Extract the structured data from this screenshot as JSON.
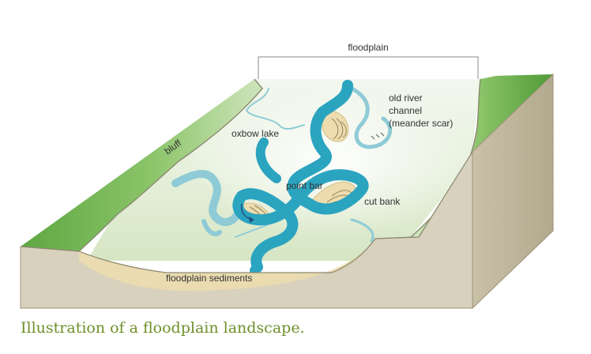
{
  "labels": {
    "floodplain": "floodplain",
    "old_river_line1": "old river",
    "old_river_line2": "channel",
    "old_river_line3": "(meander scar)",
    "oxbow_lake": "oxbow lake",
    "bluff": "bluff",
    "point_bar": "point bar",
    "cut_bank": "cut bank",
    "floodplain_sediments": "floodplain sediments"
  },
  "caption": "Illustration of a floodplain landscape.",
  "colors": {
    "river": "#2ba4c0",
    "scar": "#8fcbd6",
    "bluff_green": "#6cb04c",
    "earth": "#d8d1bd",
    "sediment": "#ecdcae",
    "caption": "#6f8f2a"
  }
}
